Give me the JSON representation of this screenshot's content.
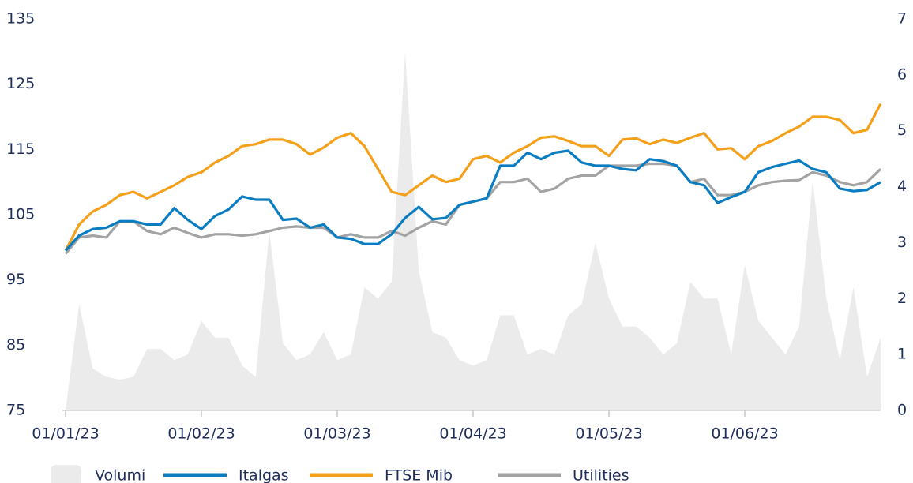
{
  "chart_data": {
    "type": "line",
    "categories": [
      "01/01/23",
      null,
      null,
      null,
      null,
      null,
      null,
      null,
      null,
      null,
      "01/02/23",
      null,
      null,
      null,
      null,
      null,
      null,
      null,
      null,
      null,
      "01/03/23",
      null,
      null,
      null,
      null,
      null,
      null,
      null,
      null,
      null,
      "01/04/23",
      null,
      null,
      null,
      null,
      null,
      null,
      null,
      null,
      null,
      "01/05/23",
      null,
      null,
      null,
      null,
      null,
      null,
      null,
      null,
      null,
      "01/06/23",
      null,
      null,
      null,
      null,
      null,
      null,
      null,
      null,
      null,
      null
    ],
    "series": [
      {
        "name": "Volumi",
        "type": "area",
        "axis": "y2",
        "color": "#ebebeb",
        "values": [
          0,
          1.9,
          0.75,
          0.6,
          0.55,
          0.6,
          1.1,
          1.1,
          0.9,
          1.0,
          1.6,
          1.3,
          1.3,
          0.8,
          0.6,
          3.2,
          1.2,
          0.9,
          1.0,
          1.4,
          0.9,
          1.0,
          2.2,
          2.0,
          2.3,
          6.4,
          2.5,
          1.4,
          1.3,
          0.9,
          0.8,
          0.9,
          1.7,
          1.7,
          1.0,
          1.1,
          1.0,
          1.7,
          1.9,
          3.0,
          2.0,
          1.5,
          1.5,
          1.3,
          1.0,
          1.2,
          2.3,
          2.0,
          2.0,
          1.0,
          2.6,
          1.6,
          1.3,
          1.0,
          1.5,
          4.1,
          2.0,
          0.9,
          2.2,
          0.6,
          1.3
        ]
      },
      {
        "name": "Italgas",
        "color": "#0a7dc2",
        "values": [
          99.5,
          101.8,
          102.8,
          103,
          104,
          104,
          103.5,
          103.5,
          106,
          104.2,
          102.8,
          104.8,
          105.8,
          107.8,
          107.3,
          107.3,
          104.2,
          104.4,
          103,
          103.5,
          101.5,
          101.3,
          100.5,
          100.5,
          102,
          104.5,
          106.2,
          104.3,
          104.5,
          106.5,
          107,
          107.5,
          112.5,
          112.5,
          114.5,
          113.5,
          114.5,
          114.8,
          113,
          112.5,
          112.5,
          112,
          111.8,
          113.5,
          113.2,
          112.5,
          110,
          109.5,
          106.8,
          107.7,
          108.5,
          111.5,
          112.3,
          112.8,
          113.3,
          112,
          111.5,
          109,
          108.6,
          108.8,
          110
        ]
      },
      {
        "name": "FTSE Mib",
        "color": "#f5a01a",
        "values": [
          99.5,
          103.5,
          105.5,
          106.5,
          108,
          108.5,
          107.5,
          108.5,
          109.5,
          110.8,
          111.5,
          113,
          114,
          115.5,
          115.8,
          116.5,
          116.5,
          115.8,
          114.2,
          115.3,
          116.8,
          117.5,
          115.5,
          112,
          108.5,
          108,
          109.5,
          111,
          110,
          110.5,
          113.5,
          114,
          113,
          114.5,
          115.5,
          116.8,
          117,
          116.3,
          115.5,
          115.5,
          114,
          116.5,
          116.7,
          115.8,
          116.5,
          116,
          116.8,
          117.5,
          115,
          115.2,
          113.5,
          115.5,
          116.3,
          117.5,
          118.5,
          120,
          120,
          119.5,
          117.5,
          118,
          122
        ]
      },
      {
        "name": "Utilities",
        "color": "#a3a3a3",
        "values": [
          99,
          101.5,
          101.8,
          101.5,
          104,
          104,
          102.5,
          102,
          103,
          102.2,
          101.5,
          102,
          102,
          101.8,
          102,
          102.5,
          103,
          103.2,
          103,
          103,
          101.5,
          102,
          101.5,
          101.5,
          102.5,
          101.8,
          103,
          104,
          103.5,
          106.5,
          107,
          107.5,
          110,
          110,
          110.5,
          108.5,
          109,
          110.5,
          111,
          111,
          112.5,
          112.5,
          112.5,
          112.8,
          112.8,
          112.5,
          110,
          110.5,
          108,
          108,
          108.5,
          109.5,
          110,
          110.2,
          110.3,
          111.5,
          111,
          110,
          109.5,
          110,
          112
        ]
      }
    ],
    "ylim": [
      75,
      135
    ],
    "yticks": [
      75,
      85,
      95,
      105,
      115,
      125,
      135
    ],
    "y2lim": [
      0,
      7
    ],
    "y2ticks": [
      0,
      1,
      2,
      3,
      4,
      5,
      6,
      7
    ],
    "legend": "bottom"
  }
}
